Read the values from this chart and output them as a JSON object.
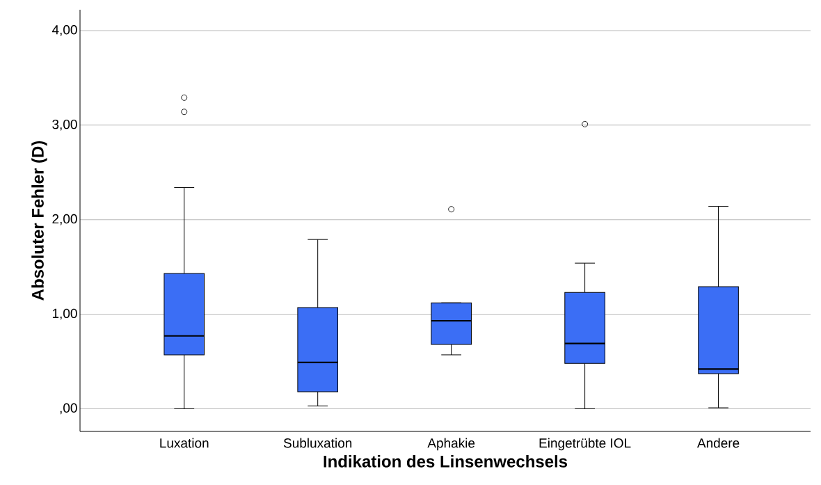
{
  "chart_data": {
    "type": "box",
    "xlabel": "Indikation des Linsenwechsels",
    "ylabel": "Absoluter Fehler (D)",
    "categories": [
      "Luxation",
      "Subluxation",
      "Aphakie",
      "Eingetrübte IOL",
      "Andere"
    ],
    "color": "#3b6ef5",
    "marker": "circle",
    "grid": "y",
    "ylim": [
      -0.24,
      4.22
    ],
    "yticks": [
      {
        "value": 0,
        "label": ",00"
      },
      {
        "value": 1,
        "label": "1,00"
      },
      {
        "value": 2,
        "label": "2,00"
      },
      {
        "value": 3,
        "label": "3,00"
      },
      {
        "value": 4,
        "label": "4,00"
      }
    ],
    "boxes": [
      {
        "low": 0.0,
        "q1": 0.57,
        "median": 0.77,
        "q3": 1.43,
        "high": 2.34,
        "outliers": [
          3.29,
          3.14
        ]
      },
      {
        "low": 0.03,
        "q1": 0.18,
        "median": 0.49,
        "q3": 1.07,
        "high": 1.79
      },
      {
        "low": 0.57,
        "q1": 0.68,
        "median": 0.93,
        "q3": 1.12,
        "high": 1.12,
        "outliers": [
          2.11
        ]
      },
      {
        "low": 0.0,
        "q1": 0.48,
        "median": 0.69,
        "q3": 1.23,
        "high": 1.54,
        "outliers": [
          3.01
        ]
      },
      {
        "low": 0.01,
        "q1": 0.37,
        "median": 0.42,
        "q3": 1.29,
        "high": 2.14
      }
    ]
  }
}
